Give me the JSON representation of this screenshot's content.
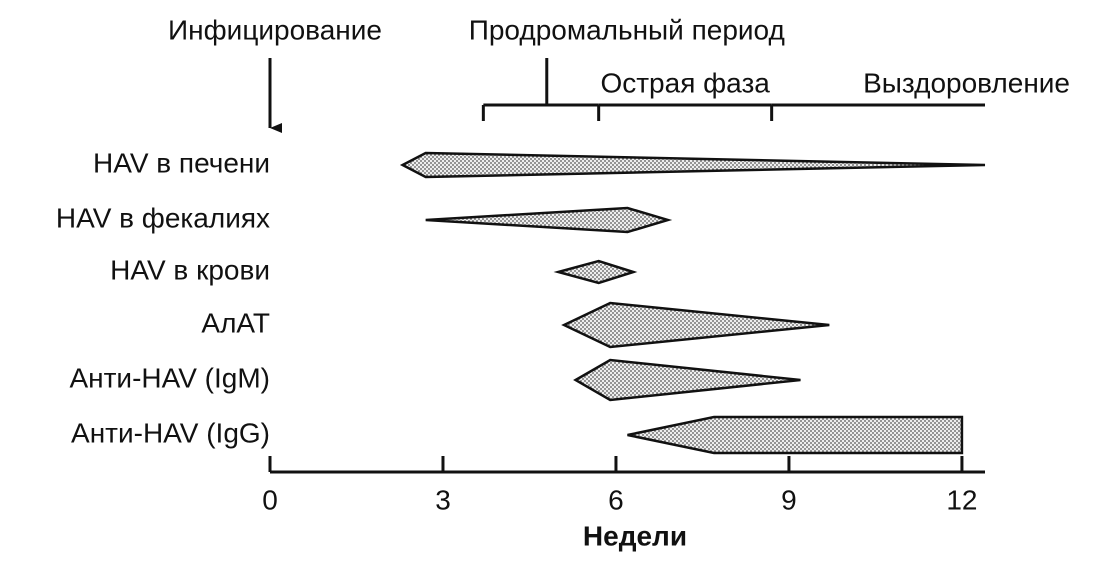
{
  "chart_data": {
    "type": "timeline",
    "xlabel": "Недели",
    "xlim": [
      0,
      12.4
    ],
    "xticks": [
      0,
      3,
      6,
      9,
      12
    ],
    "fill": "#d9d9d9",
    "bracket_start": 3.7,
    "phases": [
      {
        "label": "Инфицирование",
        "at": 0
      },
      {
        "label": "Продромальный период",
        "at": 4.8
      },
      {
        "label": "Острая фаза",
        "start": 5.7,
        "end": 8.7
      },
      {
        "label": "Выздоровление",
        "start": 8.7,
        "end": 12.4
      }
    ],
    "rows": [
      {
        "label": "HAV в печени",
        "start": 2.3,
        "peak": 2.7,
        "end": 12.4
      },
      {
        "label": "HAV в фекалиях",
        "start": 2.7,
        "peak": 6.2,
        "end": 6.9
      },
      {
        "label": "HAV в крови",
        "start": 5.0,
        "peak": 5.7,
        "end": 6.3
      },
      {
        "label": "АлАТ",
        "start": 5.1,
        "peak": 5.9,
        "end": 9.7
      },
      {
        "label": "Анти-HAV (IgM)",
        "start": 5.3,
        "peak": 5.9,
        "end": 9.2
      },
      {
        "label": "Анти-HAV (IgG)",
        "start": 6.2,
        "peak": 7.7,
        "end": 12,
        "end_shape": "flat"
      }
    ]
  }
}
